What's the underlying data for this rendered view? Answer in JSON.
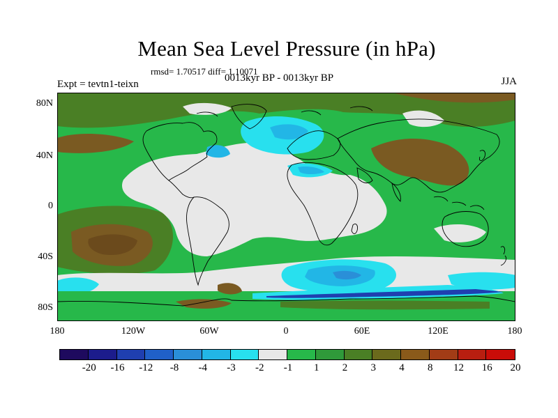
{
  "header": {
    "title": "Mean Sea Level Pressure (in hPa)",
    "stats": "rmsd= 1.70517 diff= 1.10071",
    "subtitle": "0013kyr BP - 0013kyr BP",
    "experiment": "Expt = tevtn1-teixn",
    "season": "JJA"
  },
  "axes": {
    "y_labels": [
      "80N",
      "40N",
      "0",
      "40S",
      "80S"
    ],
    "x_labels": [
      "180",
      "120W",
      "60W",
      "0",
      "60E",
      "120E",
      "180"
    ]
  },
  "colorbar": {
    "colors": [
      "#1e0a5e",
      "#1c1c8c",
      "#1f3fb0",
      "#2060c8",
      "#2a8fd8",
      "#22b6e6",
      "#28e0ee",
      "#e8e8e8",
      "#27b84a",
      "#2f9a3a",
      "#4a7f25",
      "#6b6a1c",
      "#8a5a1a",
      "#a23c16",
      "#b81e10",
      "#c90c08"
    ],
    "labels": [
      "-20",
      "-16",
      "-12",
      "-8",
      "-4",
      "-3",
      "-2",
      "-1",
      "1",
      "2",
      "3",
      "4",
      "8",
      "12",
      "16",
      "20"
    ]
  },
  "palette": {
    "neutral": "#e8e8e8",
    "green": "#27b84a",
    "olive": "#4a7f25",
    "brown": "#7a5a22",
    "cyan": "#28e0ee",
    "lightblue": "#22b6e6",
    "blue": "#2a8fd8",
    "navy": "#1f3fb0",
    "coast": "#000000"
  }
}
